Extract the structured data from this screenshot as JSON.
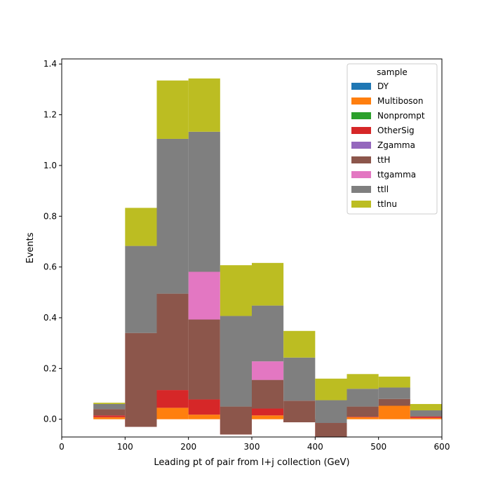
{
  "chart_data": {
    "type": "bar",
    "stacked": true,
    "title": "",
    "xlabel": "Leading pt of pair from l+j collection (GeV)",
    "ylabel": "Events",
    "xlim": [
      0,
      600
    ],
    "ylim": [
      -0.07,
      1.42
    ],
    "xticks": [
      0,
      100,
      200,
      300,
      400,
      500,
      600
    ],
    "yticks": [
      0.0,
      0.2,
      0.4,
      0.6,
      0.8,
      1.0,
      1.2,
      1.4
    ],
    "xtick_labels": [
      "0",
      "100",
      "200",
      "300",
      "400",
      "500",
      "600"
    ],
    "ytick_labels": [
      "0.0",
      "0.2",
      "0.4",
      "0.6",
      "0.8",
      "1.0",
      "1.2",
      "1.4"
    ],
    "bin_edges": [
      50,
      100,
      150,
      200,
      250,
      300,
      350,
      400,
      450,
      500,
      550,
      600
    ],
    "grid": false,
    "legend_title": "sample",
    "legend_position": "top-right",
    "series": [
      {
        "name": "DY",
        "color": "#1f77b4",
        "values": [
          0,
          0,
          0,
          0,
          0,
          0,
          0,
          0,
          0,
          0,
          0
        ]
      },
      {
        "name": "Multiboson",
        "color": "#ff7f0e",
        "values": [
          0.008,
          0,
          0.045,
          0.018,
          0,
          0.015,
          0,
          0,
          0.008,
          0.055,
          0.005
        ]
      },
      {
        "name": "Nonprompt",
        "color": "#2ca02c",
        "values": [
          0,
          0,
          0,
          0,
          0,
          0,
          0,
          0,
          0,
          0,
          0
        ]
      },
      {
        "name": "OtherSig",
        "color": "#d62728",
        "values": [
          0.007,
          -0.03,
          0.07,
          0.06,
          -0.06,
          0.027,
          -0.012,
          -0.07,
          0.002,
          -0.002,
          0.005
        ]
      },
      {
        "name": "Zgamma",
        "color": "#9467bd",
        "values": [
          0,
          0,
          0,
          0,
          0,
          0,
          0,
          0,
          0,
          0,
          0
        ]
      },
      {
        "name": "ttH",
        "color": "#8c564b",
        "values": [
          0.025,
          0.37,
          0.38,
          0.315,
          0.11,
          0.113,
          0.085,
          0.055,
          0.04,
          0.027,
          0.002
        ]
      },
      {
        "name": "ttgamma",
        "color": "#e377c2",
        "values": [
          0,
          0,
          0,
          0.188,
          0,
          0.073,
          0,
          0,
          0,
          0,
          0
        ]
      },
      {
        "name": "ttll",
        "color": "#7f7f7f",
        "values": [
          0.02,
          0.343,
          0.61,
          0.552,
          0.357,
          0.22,
          0.17,
          0.09,
          0.07,
          0.045,
          0.023
        ]
      },
      {
        "name": "ttlnu",
        "color": "#bcbd22",
        "values": [
          0.005,
          0.15,
          0.23,
          0.21,
          0.2,
          0.168,
          0.105,
          0.085,
          0.058,
          0.043,
          0.025
        ]
      }
    ]
  }
}
